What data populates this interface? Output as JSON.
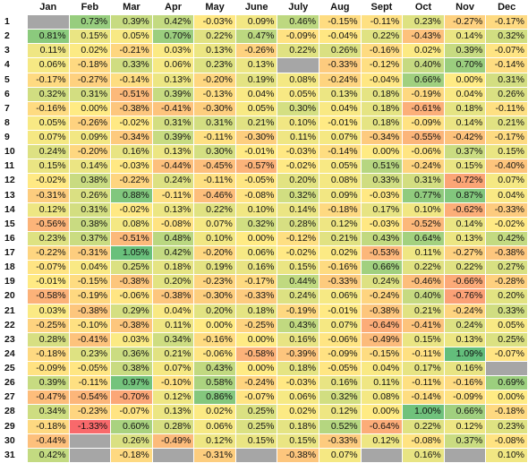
{
  "chart_data": {
    "type": "heatmap",
    "title": "",
    "columns": [
      "Jan",
      "Feb",
      "Mar",
      "Apr",
      "May",
      "June",
      "July",
      "Aug",
      "Sept",
      "Oct",
      "Nov",
      "Dec"
    ],
    "rows": [
      "1",
      "2",
      "3",
      "4",
      "5",
      "6",
      "7",
      "8",
      "9",
      "10",
      "11",
      "12",
      "13",
      "14",
      "15",
      "16",
      "17",
      "18",
      "19",
      "20",
      "21",
      "22",
      "23",
      "24",
      "25",
      "26",
      "27",
      "28",
      "29",
      "30",
      "31"
    ],
    "unit": "%",
    "values": [
      [
        null,
        0.73,
        0.39,
        0.42,
        -0.03,
        0.09,
        0.46,
        -0.15,
        -0.11,
        0.23,
        -0.27,
        -0.17
      ],
      [
        0.81,
        0.15,
        0.05,
        0.7,
        0.22,
        0.47,
        -0.09,
        -0.04,
        0.22,
        -0.43,
        0.14,
        0.32
      ],
      [
        0.11,
        0.02,
        -0.21,
        0.03,
        0.13,
        -0.26,
        0.22,
        0.26,
        -0.16,
        0.02,
        0.39,
        -0.07
      ],
      [
        0.06,
        -0.18,
        0.33,
        0.06,
        0.23,
        0.13,
        null,
        -0.33,
        -0.12,
        0.4,
        0.7,
        -0.14
      ],
      [
        -0.17,
        -0.27,
        -0.14,
        0.13,
        -0.2,
        0.19,
        0.08,
        -0.24,
        -0.04,
        0.66,
        0.0,
        0.31
      ],
      [
        0.32,
        0.31,
        -0.51,
        0.39,
        -0.13,
        0.04,
        0.05,
        0.13,
        0.18,
        -0.19,
        0.04,
        0.26
      ],
      [
        -0.16,
        0.0,
        -0.38,
        -0.41,
        -0.3,
        0.05,
        0.3,
        0.04,
        0.18,
        -0.61,
        0.18,
        -0.11
      ],
      [
        0.05,
        -0.26,
        -0.02,
        0.31,
        0.31,
        0.21,
        0.1,
        -0.01,
        0.18,
        -0.09,
        0.14,
        0.21
      ],
      [
        0.07,
        0.09,
        -0.34,
        0.39,
        -0.11,
        -0.3,
        0.11,
        0.07,
        -0.34,
        -0.55,
        -0.42,
        -0.17
      ],
      [
        0.24,
        -0.2,
        0.16,
        0.13,
        0.3,
        -0.01,
        -0.03,
        -0.14,
        0.0,
        -0.06,
        0.37,
        0.15
      ],
      [
        0.15,
        0.14,
        -0.03,
        -0.44,
        -0.45,
        -0.57,
        -0.02,
        0.05,
        0.51,
        -0.24,
        0.15,
        -0.4
      ],
      [
        -0.02,
        0.38,
        -0.22,
        0.24,
        -0.11,
        -0.05,
        0.2,
        0.08,
        0.33,
        0.31,
        -0.72,
        0.07
      ],
      [
        -0.31,
        0.26,
        0.88,
        -0.11,
        -0.46,
        -0.08,
        0.32,
        0.09,
        -0.03,
        0.77,
        0.87,
        0.04
      ],
      [
        0.12,
        0.31,
        -0.02,
        0.13,
        0.22,
        0.1,
        0.14,
        -0.18,
        0.17,
        0.1,
        -0.62,
        -0.33
      ],
      [
        -0.56,
        0.38,
        0.08,
        -0.08,
        0.07,
        0.32,
        0.28,
        0.12,
        -0.03,
        -0.52,
        0.14,
        -0.02
      ],
      [
        0.23,
        0.37,
        -0.51,
        0.48,
        0.1,
        0.0,
        -0.12,
        0.21,
        0.43,
        0.64,
        0.13,
        0.42
      ],
      [
        -0.22,
        -0.31,
        1.05,
        0.42,
        -0.2,
        0.06,
        -0.02,
        0.02,
        -0.53,
        0.11,
        -0.27,
        -0.38
      ],
      [
        -0.07,
        0.04,
        0.25,
        0.18,
        0.19,
        0.16,
        0.15,
        -0.16,
        0.66,
        0.22,
        0.22,
        0.27
      ],
      [
        -0.01,
        -0.15,
        -0.38,
        0.2,
        -0.23,
        -0.17,
        0.44,
        -0.33,
        0.24,
        -0.46,
        -0.66,
        -0.28
      ],
      [
        -0.58,
        -0.19,
        -0.06,
        -0.38,
        -0.3,
        -0.33,
        0.24,
        0.06,
        -0.24,
        0.4,
        -0.76,
        0.2
      ],
      [
        0.03,
        -0.38,
        0.29,
        0.04,
        0.2,
        0.18,
        -0.19,
        -0.01,
        -0.38,
        0.21,
        -0.24,
        0.33
      ],
      [
        -0.25,
        -0.1,
        -0.38,
        0.11,
        0.0,
        -0.25,
        0.43,
        0.07,
        -0.64,
        -0.41,
        0.24,
        0.05
      ],
      [
        0.28,
        -0.41,
        0.03,
        0.34,
        -0.16,
        0.0,
        0.16,
        -0.06,
        -0.49,
        0.15,
        0.13,
        0.25
      ],
      [
        -0.18,
        0.23,
        0.36,
        0.21,
        -0.06,
        -0.58,
        -0.39,
        -0.09,
        -0.15,
        -0.11,
        1.09,
        -0.07
      ],
      [
        -0.09,
        -0.05,
        0.38,
        0.07,
        0.43,
        0.0,
        0.18,
        -0.05,
        0.04,
        0.17,
        0.16,
        null
      ],
      [
        0.39,
        -0.11,
        0.97,
        -0.1,
        0.58,
        -0.24,
        -0.03,
        0.16,
        0.11,
        -0.11,
        -0.16,
        0.69
      ],
      [
        -0.47,
        -0.54,
        -0.7,
        0.12,
        0.86,
        -0.07,
        0.06,
        0.32,
        0.08,
        -0.14,
        -0.09,
        0.0
      ],
      [
        0.34,
        -0.23,
        -0.07,
        0.13,
        0.02,
        0.25,
        0.02,
        0.12,
        0.0,
        1.0,
        0.66,
        -0.18
      ],
      [
        -0.18,
        -1.33,
        0.6,
        0.28,
        0.06,
        0.25,
        0.18,
        0.52,
        -0.64,
        0.22,
        0.12,
        0.23
      ],
      [
        -0.44,
        null,
        0.26,
        -0.49,
        0.12,
        0.15,
        0.15,
        -0.33,
        0.12,
        -0.08,
        0.37,
        -0.08
      ],
      [
        0.42,
        null,
        -0.18,
        null,
        -0.31,
        null,
        -0.38,
        0.07,
        null,
        0.16,
        null,
        0.1
      ]
    ],
    "color_scale": {
      "type": "diverging",
      "negative": "#f8696b",
      "mid": "#ffeb84",
      "positive": "#63be7b",
      "empty": "#a6a6a6",
      "range": [
        -1.33,
        1.09
      ]
    },
    "legend": "none",
    "grid": true
  }
}
